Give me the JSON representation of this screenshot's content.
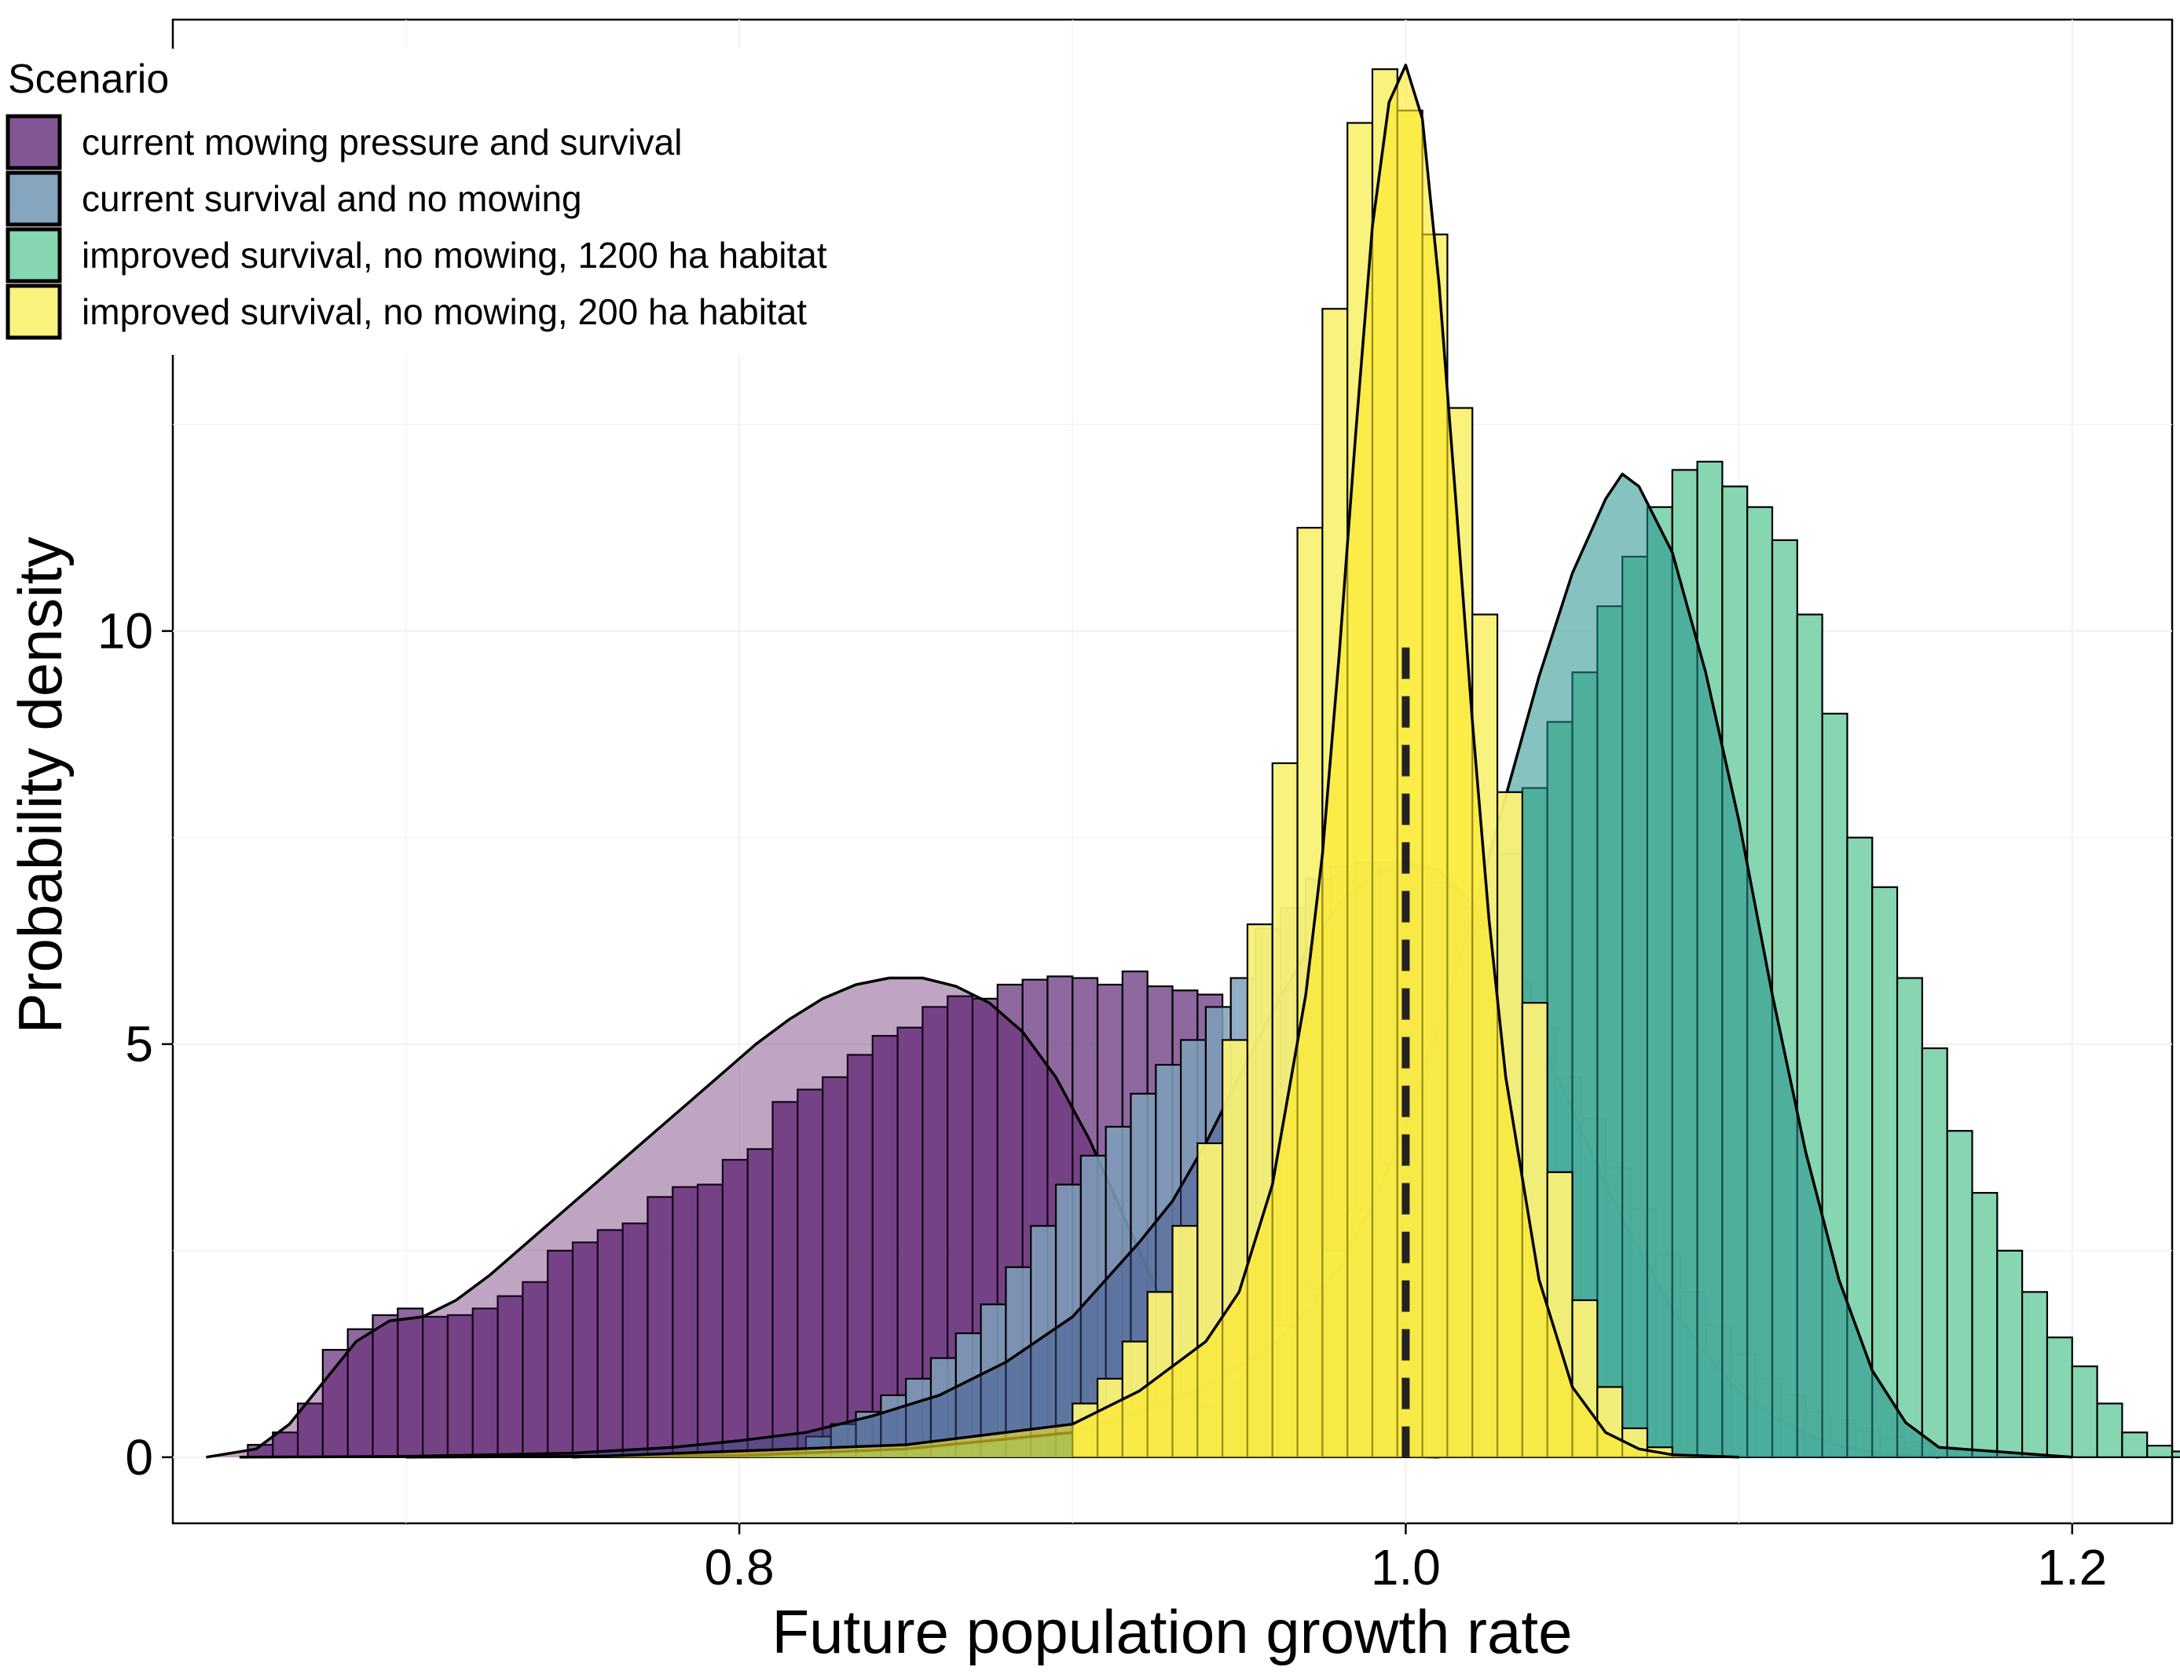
{
  "chart_data": {
    "type": "histogram+density",
    "xlabel": "Future population growth rate",
    "ylabel": "Probability density",
    "xlim": [
      0.63,
      1.23
    ],
    "ylim": [
      -0.8,
      17.4
    ],
    "x_ticks": [
      0.8,
      1.0,
      1.2
    ],
    "x_tick_labels": [
      "0.8",
      "1.0",
      "1.2"
    ],
    "y_ticks": [
      0,
      5,
      10
    ],
    "y_tick_labels": [
      "0",
      "5",
      "10"
    ],
    "reference_line": {
      "x": 1.0,
      "y_top": 9.8,
      "style": "dashed"
    },
    "grid": true,
    "legend": {
      "title": "Scenario",
      "position": "top-left",
      "entries": [
        "current mowing pressure and survival",
        "current survival and no mowing",
        "improved survival, no mowing, 1200 ha habitat",
        "improved survival, no mowing, 200 ha habitat"
      ]
    },
    "bin_width": 0.0075,
    "series": [
      {
        "name": "current mowing pressure and survival",
        "color": "#440154",
        "hist_color": "#7b4d8f",
        "hist_alpha": 0.85,
        "density_alpha": 0.35,
        "hist": {
          "start": 0.6525,
          "heights": [
            0.15,
            0.3,
            0.65,
            1.3,
            1.55,
            1.72,
            1.8,
            1.7,
            1.72,
            1.8,
            1.95,
            2.12,
            2.5,
            2.6,
            2.75,
            2.83,
            3.15,
            3.27,
            3.3,
            3.6,
            3.73,
            4.3,
            4.45,
            4.6,
            4.87,
            5.1,
            5.2,
            5.45,
            5.58,
            5.55,
            5.72,
            5.78,
            5.82,
            5.8,
            5.72,
            5.88,
            5.7,
            5.65,
            5.6,
            5.0,
            5.0,
            4.45,
            3.85,
            3.05,
            2.8,
            2.25,
            1.6,
            1.05,
            0.65,
            0.32,
            0.15,
            0.05
          ]
        },
        "density": {
          "x": [
            0.64,
            0.655,
            0.665,
            0.675,
            0.685,
            0.695,
            0.705,
            0.715,
            0.725,
            0.735,
            0.745,
            0.755,
            0.765,
            0.775,
            0.785,
            0.795,
            0.805,
            0.815,
            0.825,
            0.835,
            0.845,
            0.855,
            0.865,
            0.875,
            0.885,
            0.895,
            0.905,
            0.915,
            0.925,
            0.935,
            0.945,
            0.955,
            0.965,
            0.975,
            0.985,
            0.995,
            1.01
          ],
          "y": [
            0,
            0.1,
            0.4,
            0.9,
            1.4,
            1.65,
            1.7,
            1.9,
            2.2,
            2.55,
            2.9,
            3.25,
            3.6,
            3.95,
            4.3,
            4.65,
            5.0,
            5.3,
            5.55,
            5.72,
            5.8,
            5.8,
            5.7,
            5.5,
            5.15,
            4.6,
            3.85,
            2.95,
            2.05,
            1.3,
            0.75,
            0.4,
            0.2,
            0.09,
            0.04,
            0.015,
            0
          ]
        }
      },
      {
        "name": "current survival and no mowing",
        "color": "#3b528b",
        "hist_color": "#7fa0bb",
        "hist_alpha": 0.85,
        "density_alpha": 0.45,
        "hist": {
          "start": 0.82,
          "heights": [
            0.25,
            0.4,
            0.55,
            0.75,
            0.95,
            1.2,
            1.5,
            1.85,
            2.3,
            2.8,
            3.3,
            3.65,
            4.0,
            4.4,
            4.75,
            5.05,
            5.45,
            5.8,
            6.4,
            6.65,
            7.0,
            7.15,
            7.2,
            7.2,
            7.15,
            6.95,
            6.65,
            6.3,
            5.75,
            5.2,
            4.6,
            4.1,
            3.5,
            3.0,
            2.45,
            2.0,
            1.6,
            1.25,
            0.95,
            0.75,
            0.55,
            0.45,
            0.35,
            0.25,
            0.18,
            0.12
          ]
        },
        "density": {
          "x": [
            0.65,
            0.7,
            0.75,
            0.78,
            0.8,
            0.82,
            0.84,
            0.86,
            0.88,
            0.9,
            0.92,
            0.93,
            0.94,
            0.95,
            0.96,
            0.97,
            0.98,
            0.99,
            1.0,
            1.01,
            1.02,
            1.03,
            1.04,
            1.05,
            1.06,
            1.07,
            1.08,
            1.09,
            1.1,
            1.11,
            1.12,
            1.13,
            1.14,
            1.16
          ],
          "y": [
            0,
            0.01,
            0.05,
            0.12,
            0.2,
            0.3,
            0.5,
            0.75,
            1.15,
            1.7,
            2.6,
            3.1,
            3.8,
            4.6,
            5.4,
            6.1,
            6.7,
            7.05,
            7.2,
            7.1,
            6.7,
            6.0,
            5.1,
            4.2,
            3.3,
            2.5,
            1.8,
            1.25,
            0.8,
            0.5,
            0.28,
            0.14,
            0.06,
            0
          ]
        }
      },
      {
        "name": "improved survival, no mowing, 1200 ha habitat",
        "color": "#21908c",
        "hist_color": "#7fd4ad",
        "hist_alpha": 0.95,
        "density_alpha": 0.55,
        "hist": {
          "start": 0.9375,
          "heights": [
            0.6,
            0.9,
            1.2,
            1.6,
            2.05,
            2.5,
            3.0,
            3.55,
            4.15,
            4.8,
            5.5,
            6.4,
            7.3,
            8.1,
            8.9,
            9.5,
            10.3,
            10.9,
            11.5,
            11.95,
            12.05,
            11.75,
            11.5,
            11.1,
            10.2,
            9.0,
            7.5,
            6.9,
            5.8,
            4.95,
            3.95,
            3.2,
            2.5,
            2.0,
            1.45,
            1.1,
            0.65,
            0.3,
            0.14,
            0.07
          ]
        },
        "density": {
          "x": [
            0.7,
            0.8,
            0.85,
            0.9,
            0.92,
            0.94,
            0.95,
            0.96,
            0.97,
            0.98,
            0.99,
            1.0,
            1.01,
            1.02,
            1.03,
            1.04,
            1.05,
            1.06,
            1.065,
            1.07,
            1.08,
            1.09,
            1.1,
            1.11,
            1.12,
            1.13,
            1.14,
            1.15,
            1.16,
            1.2
          ],
          "y": [
            0,
            0.02,
            0.1,
            0.3,
            0.55,
            0.85,
            1.1,
            1.35,
            1.75,
            2.3,
            3.05,
            4.0,
            5.2,
            6.55,
            8.0,
            9.45,
            10.7,
            11.6,
            11.9,
            11.75,
            10.95,
            9.5,
            7.7,
            5.6,
            3.7,
            2.15,
            1.05,
            0.42,
            0.12,
            0
          ]
        }
      },
      {
        "name": "improved survival, no mowing, 200 ha habitat",
        "color": "#fde725",
        "hist_color": "#f9f176",
        "hist_alpha": 0.95,
        "density_alpha": 0.6,
        "hist": {
          "start": 0.9,
          "heights": [
            0.65,
            0.95,
            1.4,
            2.0,
            2.8,
            3.8,
            5.05,
            6.45,
            8.4,
            11.25,
            13.9,
            16.15,
            16.8,
            16.3,
            14.8,
            12.7,
            10.2,
            8.05,
            5.5,
            3.45,
            1.9,
            0.85,
            0.35,
            0.12
          ]
        },
        "density": {
          "x": [
            0.75,
            0.85,
            0.9,
            0.92,
            0.94,
            0.95,
            0.96,
            0.97,
            0.975,
            0.98,
            0.985,
            0.99,
            0.995,
            1.0,
            1.005,
            1.01,
            1.015,
            1.02,
            1.025,
            1.03,
            1.04,
            1.05,
            1.06,
            1.07,
            1.08,
            1.1
          ],
          "y": [
            0,
            0.15,
            0.4,
            0.8,
            1.4,
            2.0,
            3.3,
            5.6,
            7.3,
            9.7,
            12.4,
            14.9,
            16.4,
            16.85,
            16.2,
            14.2,
            11.6,
            8.9,
            6.5,
            4.6,
            2.15,
            0.85,
            0.3,
            0.1,
            0.03,
            0
          ]
        }
      }
    ]
  }
}
